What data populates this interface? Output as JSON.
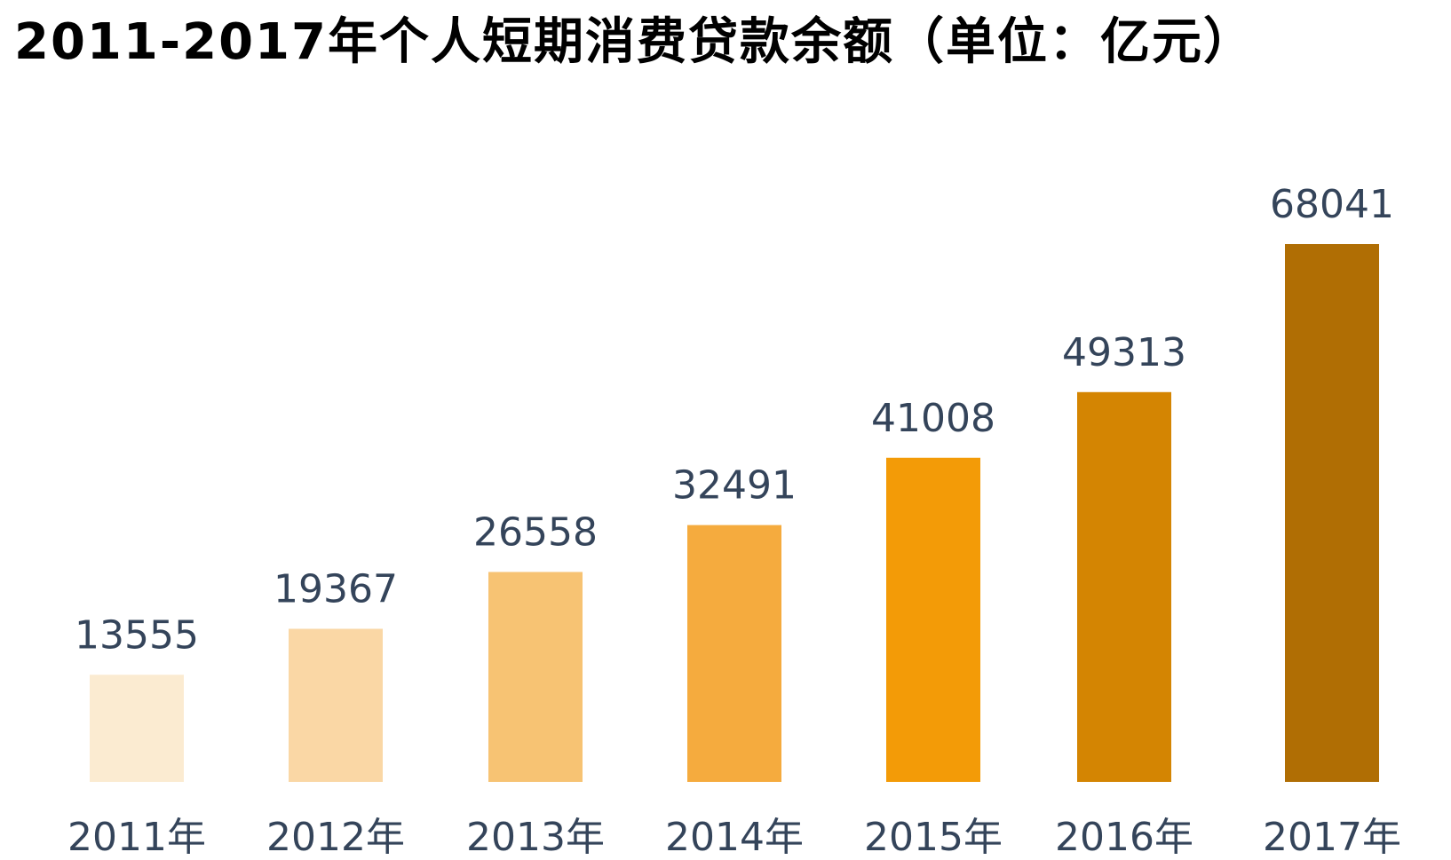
{
  "chart_data": {
    "type": "bar",
    "title": "2011-2017年个人短期消费贷款余额（单位：亿元）",
    "categories": [
      "2011年",
      "2012年",
      "2013年",
      "2014年",
      "2015年",
      "2016年",
      "2017年"
    ],
    "values": [
      13555,
      19367,
      26558,
      32491,
      41008,
      49313,
      68041
    ],
    "value_labels": [
      "13555",
      "19367",
      "26558",
      "32491",
      "41008",
      "49313",
      "68041"
    ],
    "colors": [
      "#fbebd1",
      "#fad7a5",
      "#f7c373",
      "#f5ab3e",
      "#f39b07",
      "#d48502",
      "#b06e04"
    ],
    "ylim": [
      0,
      68041
    ],
    "grid": false,
    "legend": "none"
  }
}
